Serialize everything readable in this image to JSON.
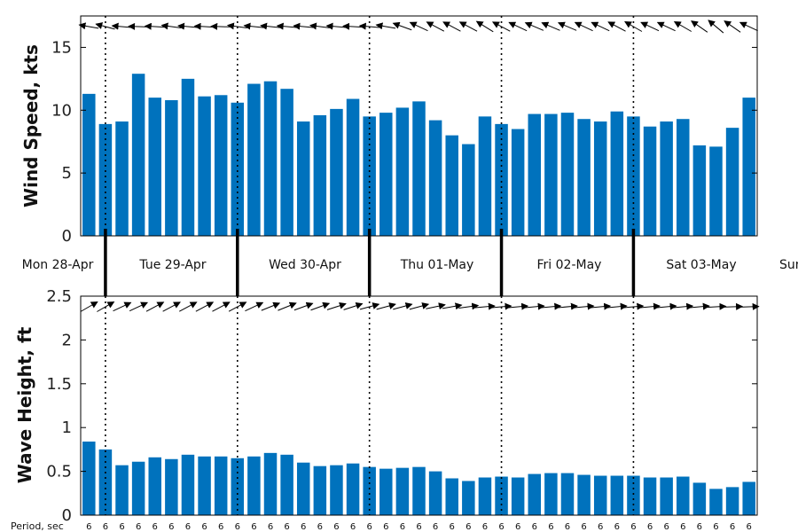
{
  "colors": {
    "bar": "#0072BD",
    "axis": "#000000",
    "text": "#222222"
  },
  "top_panel": {
    "ylabel": "Wind Speed, kts",
    "yticks": [
      "0",
      "5",
      "10",
      "15"
    ]
  },
  "bottom_panel": {
    "ylabel": "Wave Height, ft",
    "yticks": [
      "0",
      "0.5",
      "1",
      "1.5",
      "2",
      "2.5"
    ]
  },
  "period_label": "Period, sec",
  "days": [
    "Mon 28-Apr",
    "Tue 29-Apr",
    "Wed 30-Apr",
    "Thu 01-May",
    "Fri 02-May",
    "Sat 03-May",
    "Sun"
  ],
  "chart_data": [
    {
      "type": "bar",
      "panel": "top",
      "ylabel": "Wind Speed, kts",
      "ylim": [
        0,
        17.5
      ],
      "grid": false,
      "arrow_icon": "arrow-icon",
      "x_index": [
        0,
        1,
        2,
        3,
        4,
        5,
        6,
        7,
        8,
        9,
        10,
        11,
        12,
        13,
        14,
        15,
        16,
        17,
        18,
        19,
        20,
        21,
        22,
        23,
        24,
        25,
        26,
        27,
        28,
        29,
        30,
        31,
        32,
        33,
        34,
        35,
        36,
        37,
        38,
        39,
        40
      ],
      "values": [
        11.3,
        8.9,
        9.1,
        12.9,
        11.0,
        10.8,
        12.5,
        11.1,
        11.2,
        10.6,
        12.1,
        12.3,
        11.7,
        9.1,
        9.6,
        10.1,
        10.9,
        9.5,
        9.8,
        10.2,
        10.7,
        9.2,
        8.0,
        7.3,
        9.5,
        8.9,
        8.5,
        9.7,
        9.7,
        9.8,
        9.3,
        9.1,
        9.9,
        9.5,
        8.7,
        9.1,
        9.3,
        7.2,
        7.1,
        8.6,
        11.0
      ],
      "direction_arrows_deg": [
        190,
        195,
        185,
        182,
        183,
        188,
        185,
        183,
        182,
        188,
        186,
        186,
        185,
        185,
        187,
        185,
        183,
        185,
        190,
        200,
        205,
        208,
        208,
        208,
        212,
        208,
        205,
        203,
        203,
        203,
        205,
        205,
        208,
        210,
        205,
        205,
        210,
        215,
        220,
        215,
        205
      ]
    },
    {
      "type": "bar",
      "panel": "bottom",
      "ylabel": "Wave Height, ft",
      "ylim": [
        0,
        2.5
      ],
      "grid": false,
      "arrow_icon": "arrow-icon",
      "x_index": [
        0,
        1,
        2,
        3,
        4,
        5,
        6,
        7,
        8,
        9,
        10,
        11,
        12,
        13,
        14,
        15,
        16,
        17,
        18,
        19,
        20,
        21,
        22,
        23,
        24,
        25,
        26,
        27,
        28,
        29,
        30,
        31,
        32,
        33,
        34,
        35,
        36,
        37,
        38,
        39,
        40
      ],
      "values": [
        0.84,
        0.75,
        0.57,
        0.61,
        0.66,
        0.64,
        0.69,
        0.67,
        0.67,
        0.65,
        0.67,
        0.71,
        0.69,
        0.6,
        0.56,
        0.57,
        0.59,
        0.55,
        0.53,
        0.54,
        0.55,
        0.5,
        0.42,
        0.39,
        0.43,
        0.44,
        0.43,
        0.47,
        0.48,
        0.48,
        0.46,
        0.45,
        0.45,
        0.45,
        0.43,
        0.43,
        0.44,
        0.37,
        0.3,
        0.32,
        0.38
      ],
      "period_sec": [
        6,
        6,
        6,
        6,
        6,
        6,
        6,
        6,
        6,
        6,
        6,
        6,
        6,
        6,
        6,
        6,
        6,
        6,
        6,
        6,
        6,
        6,
        6,
        6,
        6,
        6,
        6,
        6,
        6,
        6,
        6,
        6,
        6,
        6,
        6,
        6,
        6,
        6,
        6,
        6,
        6
      ],
      "direction_arrows_deg": [
        -30,
        -30,
        -25,
        -25,
        -28,
        -28,
        -28,
        -28,
        -28,
        -28,
        -25,
        -22,
        -22,
        -20,
        -20,
        -18,
        -18,
        -15,
        -15,
        -15,
        -15,
        -12,
        -10,
        -8,
        -5,
        -5,
        -5,
        -5,
        -5,
        -5,
        -5,
        -5,
        -5,
        -5,
        -5,
        -5,
        -5,
        -5,
        -3,
        -2,
        -2
      ]
    }
  ]
}
